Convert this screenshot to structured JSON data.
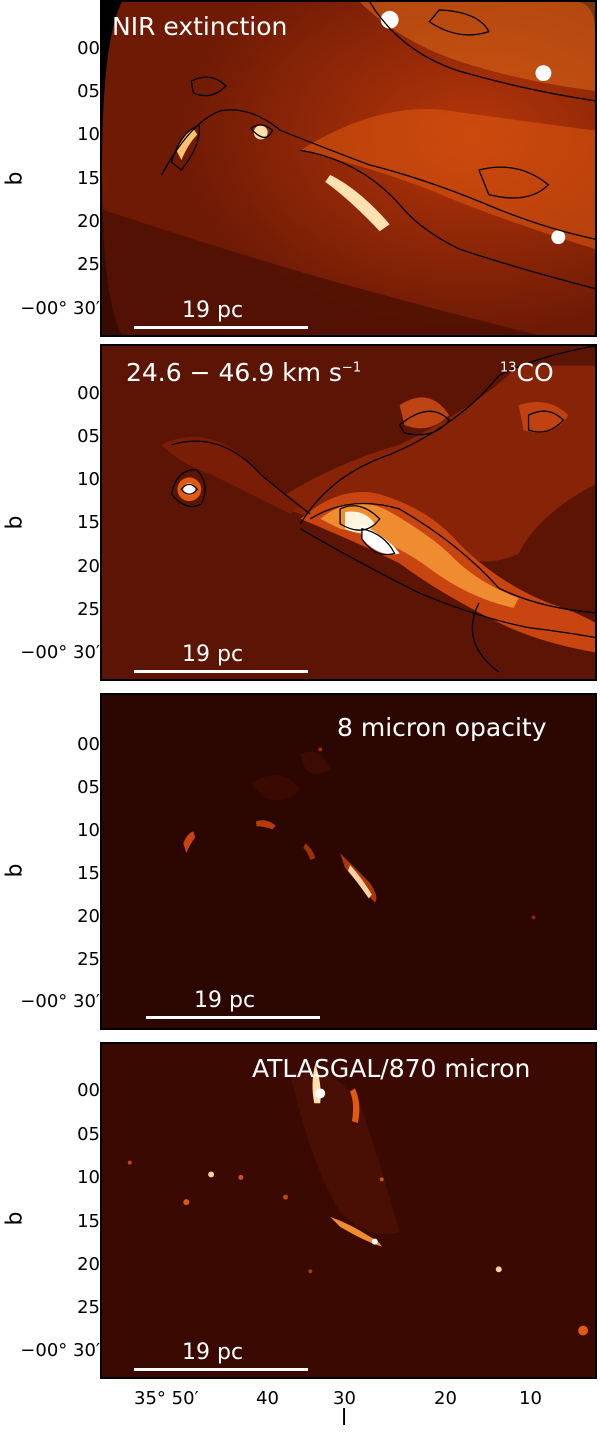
{
  "panels": [
    {
      "title": "NIR extinction",
      "scale": "19 pc"
    },
    {
      "title_left": "24.6 − 46.9 km s",
      "title_sup": "−1",
      "title_right_sup": "13",
      "title_right": "CO",
      "scale": "19 pc"
    },
    {
      "title": "8 micron opacity",
      "scale": "19 pc"
    },
    {
      "title": "ATLASGAL/870 micron",
      "scale": "19 pc"
    }
  ],
  "y_axis": {
    "label": "b",
    "ticks": [
      "00",
      "05",
      "10",
      "15",
      "20",
      "25",
      "−00° 30′"
    ]
  },
  "x_axis": {
    "label": "l",
    "ticks": [
      "35° 50′",
      "40",
      "30",
      "20",
      "10"
    ]
  },
  "colors": {
    "map_dark": "#2a0600",
    "map_mid": "#7a1d06",
    "map_bright": "#e05a10",
    "map_highlight": "#ffc070"
  }
}
